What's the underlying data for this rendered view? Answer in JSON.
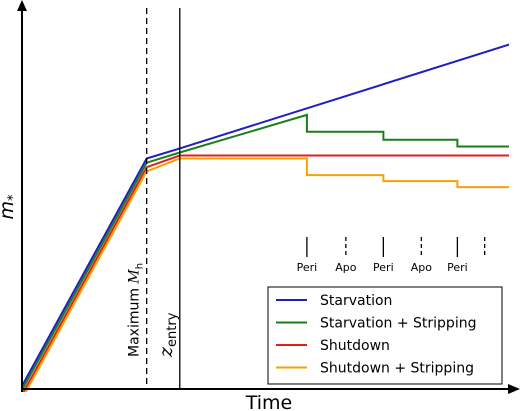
{
  "chart_data": {
    "type": "line",
    "xlabel": "Time",
    "ylabel": "m",
    "ylabel_sub": "*",
    "xlim": [
      0,
      100
    ],
    "ylim": [
      0,
      100
    ],
    "grid": false,
    "legend_position": "bottom-right",
    "series": [
      {
        "name": "Starvation",
        "color": "#1f1fbf",
        "points": [
          [
            0,
            0
          ],
          [
            25.6,
            60.5
          ],
          [
            32.4,
            63.2
          ],
          [
            100,
            90.8
          ]
        ]
      },
      {
        "name": "Starvation + Stripping",
        "color": "#1a7f1a",
        "points": [
          [
            0,
            -1.1
          ],
          [
            25.6,
            59.4
          ],
          [
            32.4,
            62.1
          ],
          [
            58.5,
            72.1
          ],
          [
            58.5,
            67.6
          ],
          [
            74.2,
            67.6
          ],
          [
            74.2,
            65.5
          ],
          [
            89.4,
            65.5
          ],
          [
            89.4,
            63.7
          ],
          [
            100,
            63.7
          ]
        ]
      },
      {
        "name": "Shutdown",
        "color": "#e01f1f",
        "points": [
          [
            0,
            -2.4
          ],
          [
            25.6,
            58.2
          ],
          [
            32.4,
            61.3
          ],
          [
            100,
            61.3
          ]
        ]
      },
      {
        "name": "Shutdown + Stripping",
        "color": "#f5a300",
        "points": [
          [
            0,
            -3.4
          ],
          [
            25.6,
            57.1
          ],
          [
            32.4,
            60.5
          ],
          [
            58.5,
            60.5
          ],
          [
            58.5,
            56.1
          ],
          [
            74.2,
            56.1
          ],
          [
            74.2,
            54.5
          ],
          [
            89.4,
            54.5
          ],
          [
            89.4,
            52.9
          ],
          [
            100,
            52.9
          ]
        ]
      }
    ],
    "vlines": [
      {
        "x": 25.6,
        "style": "dashed",
        "label": "Maximum",
        "label_math": "M",
        "label_sub": "h"
      },
      {
        "x": 32.4,
        "style": "solid",
        "label_math": "z",
        "label_sub": "entry"
      }
    ],
    "orbit_markers": [
      {
        "x": 58.5,
        "type": "solid",
        "label": "Peri"
      },
      {
        "x": 66.5,
        "type": "dashed",
        "label": "Apo"
      },
      {
        "x": 74.2,
        "type": "solid",
        "label": "Peri"
      },
      {
        "x": 82.0,
        "type": "dashed",
        "label": "Apo"
      },
      {
        "x": 89.4,
        "type": "solid",
        "label": "Peri"
      },
      {
        "x": 95.0,
        "type": "dashed",
        "label": ""
      }
    ]
  }
}
